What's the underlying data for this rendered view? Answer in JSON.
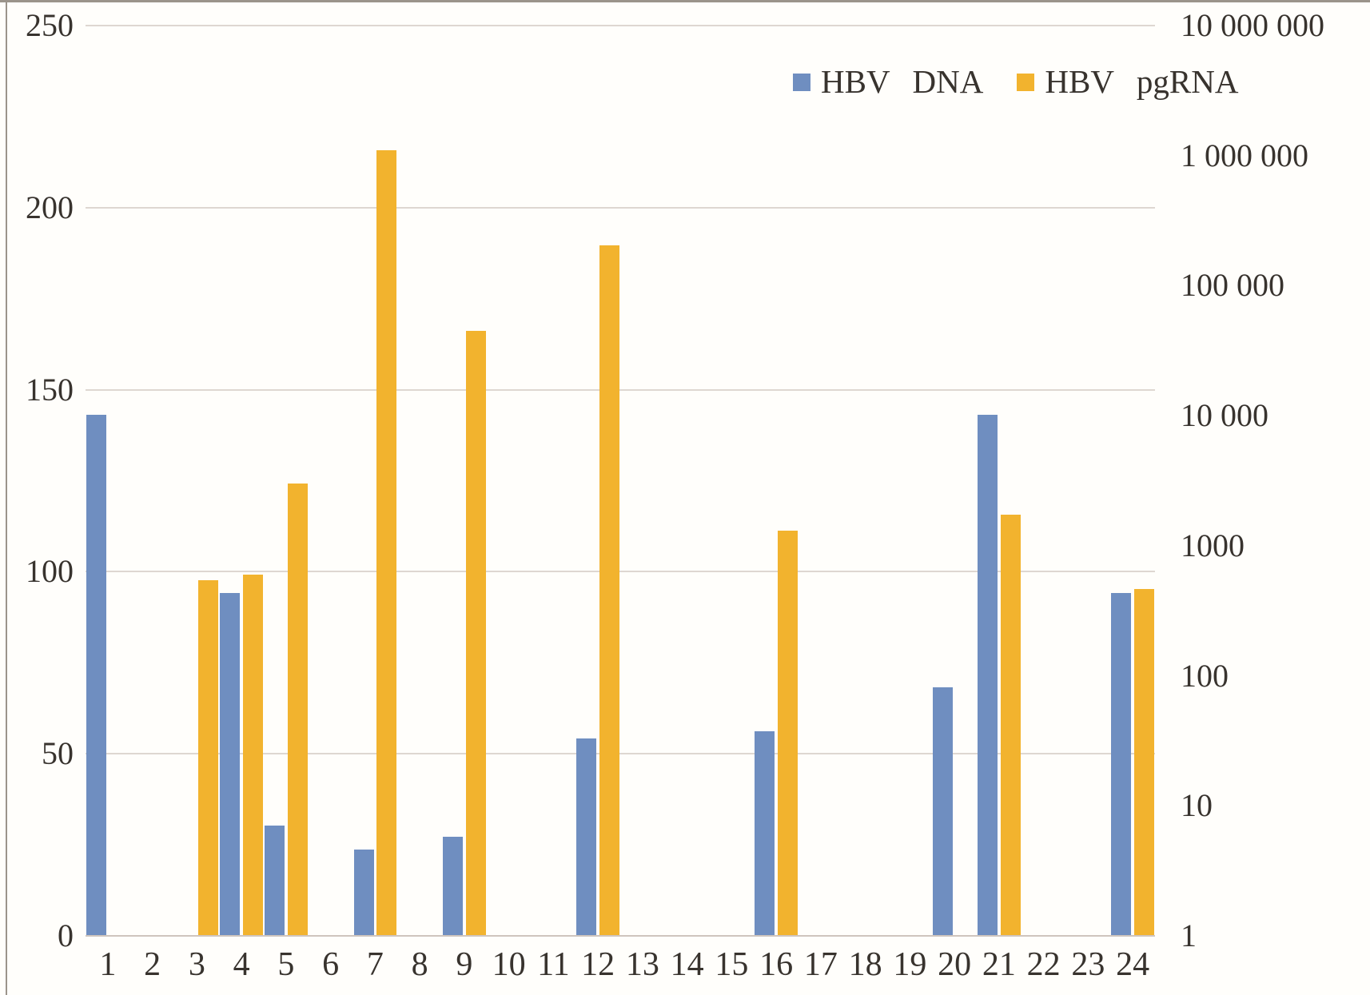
{
  "chart_data": {
    "type": "bar",
    "title": "",
    "xlabel": "",
    "ylabel": "",
    "categories": [
      "1",
      "2",
      "3",
      "4",
      "5",
      "6",
      "7",
      "8",
      "9",
      "10",
      "11",
      "12",
      "13",
      "14",
      "15",
      "16",
      "17",
      "18",
      "19",
      "20",
      "21",
      "22",
      "23",
      "24"
    ],
    "series": [
      {
        "name": "HBV DNA",
        "key": "hbv-dna",
        "color": "#6f8ec0",
        "values_left_axis_units": [
          143,
          0,
          0,
          94,
          30,
          0,
          23.5,
          0,
          27,
          0,
          0,
          54,
          0,
          0,
          0,
          56,
          0,
          0,
          0,
          68,
          143,
          0,
          0,
          94
        ],
        "approx_values_on_right_log_axis": [
          10000,
          null,
          null,
          430,
          7,
          null,
          4.5,
          null,
          5.7,
          null,
          null,
          33,
          null,
          null,
          null,
          37,
          null,
          null,
          null,
          80,
          10000,
          null,
          null,
          430
        ]
      },
      {
        "name": "HBV pgRNA",
        "key": "hbv-pgrna",
        "color": "#f2b32e",
        "values_left_axis_units": [
          0,
          0,
          97.5,
          99,
          124,
          0,
          215.5,
          0,
          166,
          0,
          0,
          189.5,
          0,
          0,
          0,
          111,
          0,
          0,
          0,
          0,
          115.5,
          0,
          0,
          95
        ],
        "approx_values_on_right_log_axis": [
          null,
          null,
          540,
          590,
          3000,
          null,
          1100000,
          null,
          45000,
          null,
          null,
          200000,
          null,
          null,
          null,
          1300,
          null,
          null,
          null,
          null,
          1700,
          null,
          null,
          460
        ]
      }
    ],
    "left_axis": {
      "min": 0,
      "max": 250,
      "ticks": [
        "0",
        "50",
        "100",
        "150",
        "200",
        "250"
      ]
    },
    "right_axis": {
      "scale": "log",
      "min": 1,
      "max": 10000000,
      "ticks": [
        "1",
        "10",
        "100",
        "1000",
        "10 000",
        "100 000",
        "1 000 000",
        "10 000 000"
      ]
    },
    "grid": "horizontal",
    "legend_position": "top-right-inside"
  },
  "colors": {
    "bar_blue": "#6f8ec0",
    "bar_yellow": "#f2b32e",
    "gridline": "#ded7d1",
    "baseline": "#cfc5be",
    "figure_border": "#9b948b",
    "text": "#38332e"
  }
}
